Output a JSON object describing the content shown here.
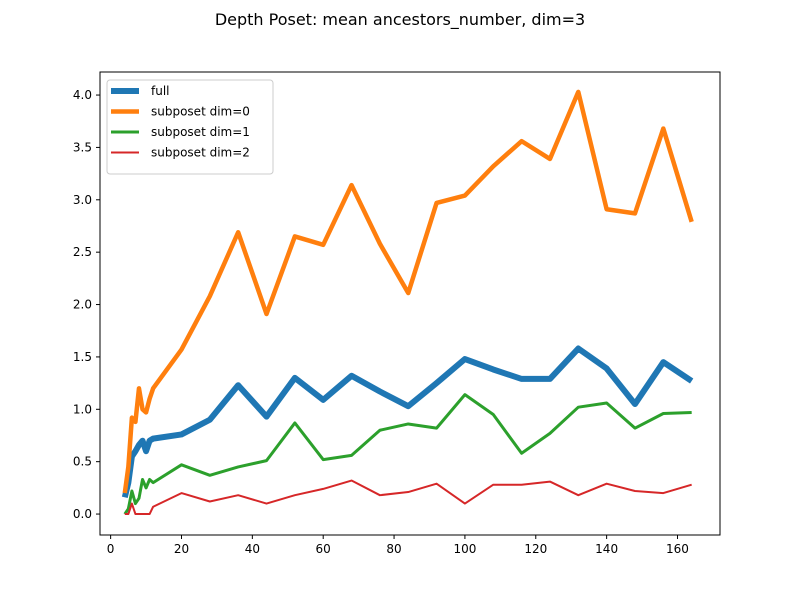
{
  "chart_data": {
    "type": "line",
    "title": "Depth Poset: mean ancestors_number, dim=3",
    "xlabel": "",
    "ylabel": "",
    "xlim": [
      -3,
      172
    ],
    "ylim": [
      -0.2,
      4.22
    ],
    "xticks": [
      0,
      20,
      40,
      60,
      80,
      100,
      120,
      140,
      160
    ],
    "xtick_labels": [
      "0",
      "20",
      "40",
      "60",
      "80",
      "100",
      "120",
      "140",
      "160"
    ],
    "yticks": [
      0.0,
      0.5,
      1.0,
      1.5,
      2.0,
      2.5,
      3.0,
      3.5,
      4.0
    ],
    "ytick_labels": [
      "0.0",
      "0.5",
      "1.0",
      "1.5",
      "2.0",
      "2.5",
      "3.0",
      "3.5",
      "4.0"
    ],
    "grid": false,
    "legend_position": "top-left",
    "x": [
      4,
      5,
      6,
      7,
      8,
      9,
      10,
      11,
      12,
      20,
      28,
      36,
      44,
      52,
      60,
      68,
      76,
      84,
      92,
      100,
      108,
      116,
      124,
      132,
      140,
      148,
      156,
      164
    ],
    "series": [
      {
        "name": "full",
        "color": "#1f77b4",
        "width": 6,
        "values": [
          0.16,
          0.3,
          0.55,
          0.6,
          0.66,
          0.7,
          0.6,
          0.7,
          0.72,
          0.76,
          0.9,
          1.23,
          0.93,
          1.3,
          1.09,
          1.32,
          1.17,
          1.03,
          1.25,
          1.48,
          1.38,
          1.29,
          1.29,
          1.58,
          1.39,
          1.05,
          1.45,
          1.27
        ]
      },
      {
        "name": "subposet dim=0",
        "color": "#ff7f0e",
        "width": 4.5,
        "values": [
          0.2,
          0.45,
          0.92,
          0.88,
          1.2,
          1.0,
          0.97,
          1.1,
          1.2,
          1.57,
          2.08,
          2.69,
          1.91,
          2.65,
          2.57,
          3.14,
          2.58,
          2.11,
          2.97,
          3.04,
          3.32,
          3.56,
          3.39,
          4.03,
          2.91,
          2.87,
          3.68,
          2.79
        ]
      },
      {
        "name": "subposet dim=1",
        "color": "#2ca02c",
        "width": 3,
        "values": [
          0.0,
          0.05,
          0.22,
          0.1,
          0.15,
          0.33,
          0.25,
          0.33,
          0.3,
          0.47,
          0.37,
          0.45,
          0.51,
          0.87,
          0.52,
          0.56,
          0.8,
          0.86,
          0.82,
          1.14,
          0.95,
          0.58,
          0.77,
          1.02,
          1.06,
          0.82,
          0.96,
          0.97
        ]
      },
      {
        "name": "subposet dim=2",
        "color": "#d62728",
        "width": 2,
        "values": [
          0.0,
          0.0,
          0.1,
          0.0,
          0.0,
          0.0,
          0.0,
          0.0,
          0.07,
          0.2,
          0.12,
          0.18,
          0.1,
          0.18,
          0.24,
          0.32,
          0.18,
          0.21,
          0.29,
          0.1,
          0.28,
          0.28,
          0.31,
          0.18,
          0.29,
          0.22,
          0.2,
          0.28
        ]
      }
    ]
  }
}
